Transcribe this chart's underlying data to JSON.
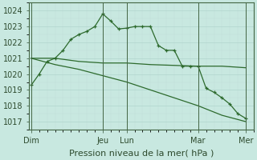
{
  "bg_color": "#c8e8e0",
  "grid_color_major": "#b0d4cc",
  "grid_color_minor": "#c0dcd8",
  "line_color": "#2d6a2d",
  "ylim": [
    1016.5,
    1024.5
  ],
  "yticks": [
    1017,
    1018,
    1019,
    1020,
    1021,
    1022,
    1023,
    1024
  ],
  "xlabel": "Pression niveau de la mer( hPa )",
  "xlabel_fontsize": 8,
  "tick_fontsize": 7,
  "xtick_labels": [
    "Dim",
    "",
    "",
    "Jeu",
    "Lun",
    "",
    "",
    "Mar",
    "",
    "Mer"
  ],
  "xtick_positions": [
    0,
    3,
    6,
    9,
    12,
    15,
    18,
    21,
    24,
    27
  ],
  "vline_positions": [
    0,
    9,
    12,
    21,
    27
  ],
  "xlim": [
    -0.3,
    28
  ],
  "series1_x": [
    0,
    1,
    2,
    3,
    4,
    5,
    6,
    7,
    8,
    9,
    10,
    11,
    12,
    13,
    14,
    15,
    16,
    17,
    18,
    19,
    20,
    21,
    22,
    23,
    24,
    25,
    26,
    27
  ],
  "series1_y": [
    1019.3,
    1020.0,
    1020.8,
    1021.0,
    1021.5,
    1022.2,
    1022.5,
    1022.7,
    1023.0,
    1023.8,
    1023.35,
    1022.85,
    1022.9,
    1023.0,
    1023.0,
    1023.0,
    1021.8,
    1021.5,
    1021.5,
    1020.5,
    1020.5,
    1020.5,
    1019.1,
    1018.85,
    1018.5,
    1018.1,
    1017.5,
    1017.2
  ],
  "series2_x": [
    0,
    3,
    6,
    9,
    12,
    15,
    18,
    21,
    24,
    27
  ],
  "series2_y": [
    1021.0,
    1021.0,
    1020.8,
    1020.7,
    1020.7,
    1020.6,
    1020.55,
    1020.5,
    1020.5,
    1020.4
  ],
  "series3_x": [
    0,
    3,
    6,
    9,
    12,
    15,
    18,
    21,
    24,
    27
  ],
  "series3_y": [
    1021.0,
    1020.6,
    1020.3,
    1019.9,
    1019.5,
    1019.0,
    1018.5,
    1018.0,
    1017.4,
    1017.0
  ]
}
